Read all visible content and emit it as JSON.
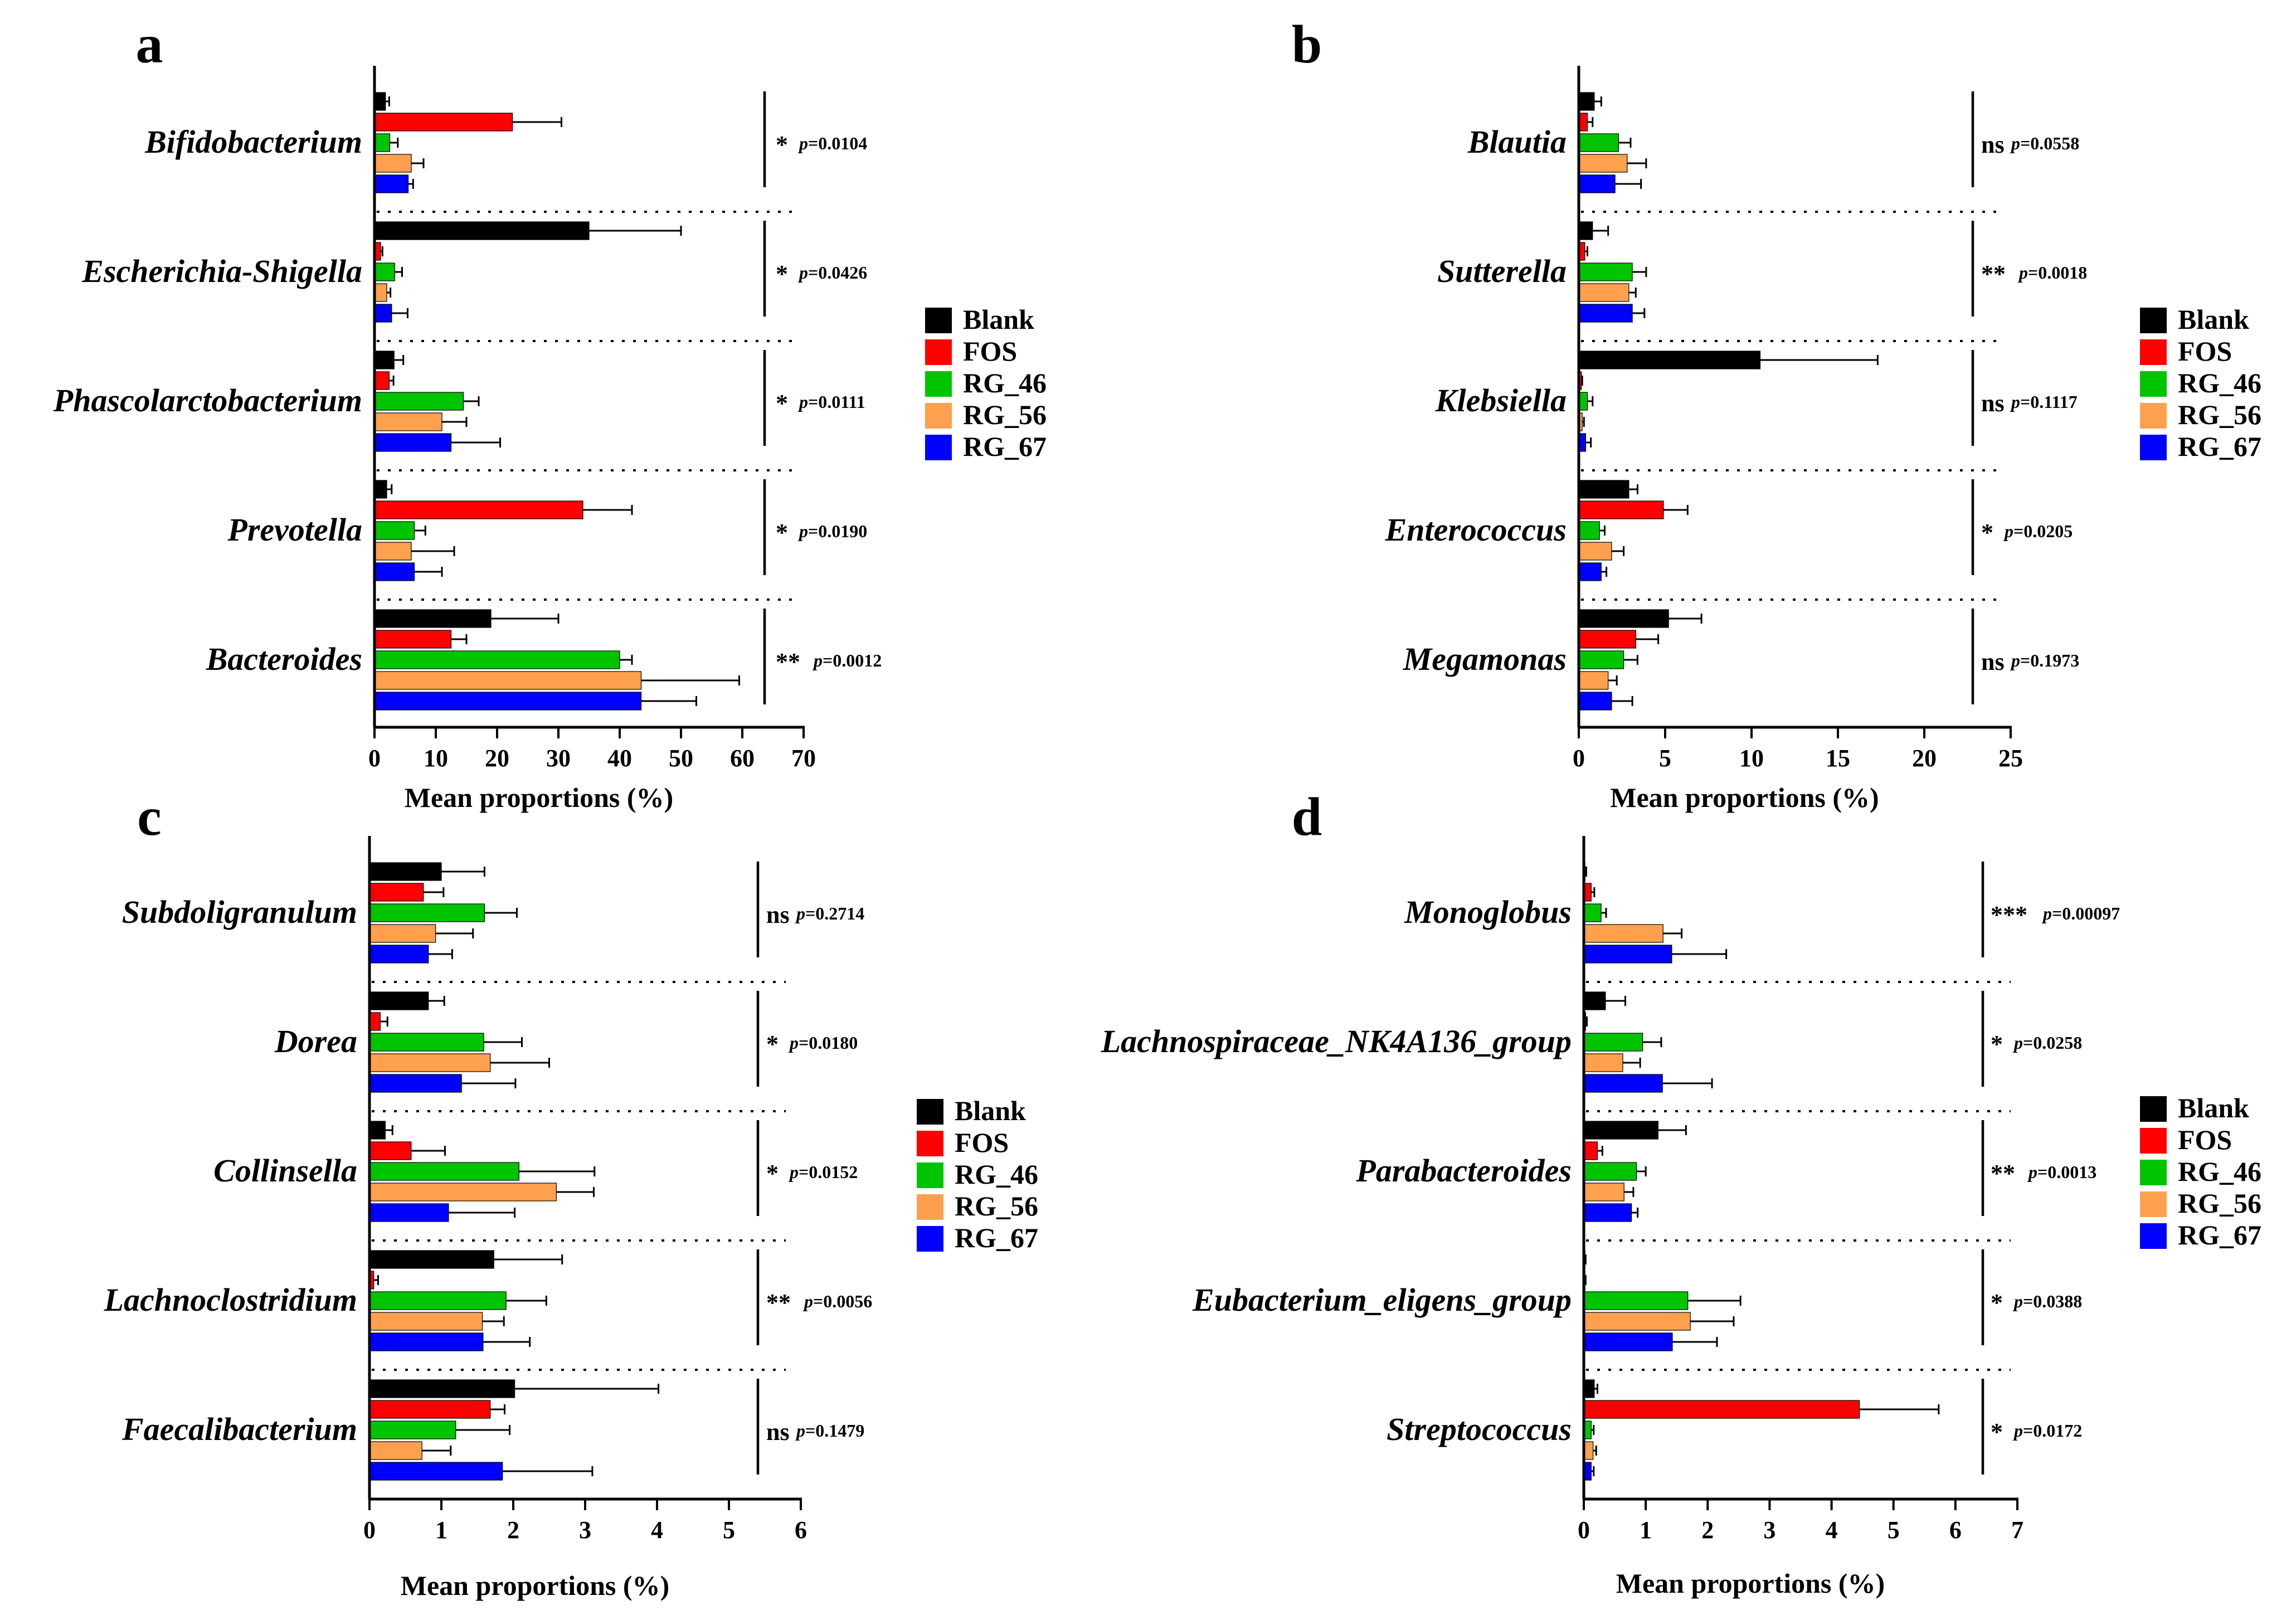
{
  "chart_data": [
    {
      "type": "bar",
      "orientation": "horizontal",
      "panel": "a",
      "xlabel": "Mean proportions (%)",
      "xlim": [
        0,
        70
      ],
      "xticks": [
        0,
        10,
        20,
        30,
        40,
        50,
        60,
        70
      ],
      "categories": [
        "Bifidobacterium",
        "Escherichia-Shigella",
        "Phascolarctobacterium",
        "Prevotella",
        "Bacteroides"
      ],
      "series": [
        {
          "name": "Blank",
          "values": [
            1.8,
            35,
            3.2,
            2,
            19
          ],
          "errors": [
            0.6,
            15,
            1.5,
            0.8,
            11
          ]
        },
        {
          "name": "FOS",
          "values": [
            22.5,
            1,
            2.4,
            34,
            12.5
          ],
          "errors": [
            8,
            0.3,
            0.7,
            8,
            2.5
          ]
        },
        {
          "name": "RG_46",
          "values": [
            2.5,
            3.3,
            14.5,
            6.5,
            40
          ],
          "errors": [
            1.3,
            1.2,
            2.5,
            1.8,
            2
          ]
        },
        {
          "name": "RG_56",
          "values": [
            6,
            2,
            11,
            6,
            43.5
          ],
          "errors": [
            2,
            0.6,
            4,
            7,
            16
          ]
        },
        {
          "name": "RG_67",
          "values": [
            5.5,
            2.8,
            12.5,
            6.5,
            43.5
          ],
          "errors": [
            0.8,
            2.6,
            8,
            4.5,
            9
          ]
        }
      ],
      "significance": [
        {
          "mark": "*",
          "p": "0.0104"
        },
        {
          "mark": "*",
          "p": "0.0426"
        },
        {
          "mark": "*",
          "p": "0.0111"
        },
        {
          "mark": "*",
          "p": "0.0190"
        },
        {
          "mark": "**",
          "p": "0.0012"
        }
      ]
    },
    {
      "type": "bar",
      "orientation": "horizontal",
      "panel": "b",
      "xlabel": "Mean proportions (%)",
      "xlim": [
        0,
        25
      ],
      "xticks": [
        0,
        5,
        10,
        15,
        20,
        25
      ],
      "categories": [
        "Blautia",
        "Sutterella",
        "Klebsiella",
        "Enterococcus",
        "Megamonas"
      ],
      "series": [
        {
          "name": "Blank",
          "values": [
            0.9,
            0.8,
            10.5,
            2.9,
            5.2
          ],
          "errors": [
            0.4,
            0.9,
            6.8,
            0.5,
            1.9
          ]
        },
        {
          "name": "FOS",
          "values": [
            0.5,
            0.35,
            0.15,
            4.9,
            3.3
          ],
          "errors": [
            0.3,
            0.15,
            0.05,
            1.4,
            1.3
          ]
        },
        {
          "name": "RG_46",
          "values": [
            2.3,
            3.1,
            0.5,
            1.2,
            2.6
          ],
          "errors": [
            0.7,
            0.8,
            0.3,
            0.3,
            0.8
          ]
        },
        {
          "name": "RG_56",
          "values": [
            2.8,
            2.9,
            0.2,
            1.9,
            1.7
          ],
          "errors": [
            1.1,
            0.4,
            0.1,
            0.7,
            0.5
          ]
        },
        {
          "name": "RG_67",
          "values": [
            2.1,
            3.1,
            0.4,
            1.3,
            1.9
          ],
          "errors": [
            1.5,
            0.7,
            0.3,
            0.3,
            1.2
          ]
        }
      ],
      "significance": [
        {
          "mark": "ns",
          "p": "0.0558"
        },
        {
          "mark": "**",
          "p": "0.0018"
        },
        {
          "mark": "ns",
          "p": "0.1117"
        },
        {
          "mark": "*",
          "p": "0.0205"
        },
        {
          "mark": "ns",
          "p": "0.1973"
        }
      ]
    },
    {
      "type": "bar",
      "orientation": "horizontal",
      "panel": "c",
      "xlabel": "Mean proportions (%)",
      "xlim": [
        0,
        6
      ],
      "xticks": [
        0,
        1,
        2,
        3,
        4,
        5,
        6
      ],
      "categories": [
        "Subdoligranulum",
        "Dorea",
        "Collinsella",
        "Lachnoclostridium",
        "Faecalibacterium"
      ],
      "series": [
        {
          "name": "Blank",
          "values": [
            1,
            0.82,
            0.22,
            1.73,
            2.02
          ],
          "errors": [
            0.6,
            0.22,
            0.1,
            0.95,
            2
          ]
        },
        {
          "name": "FOS",
          "values": [
            0.75,
            0.15,
            0.58,
            0.06,
            1.68
          ],
          "errors": [
            0.28,
            0.1,
            0.47,
            0.06,
            0.2
          ]
        },
        {
          "name": "RG_46",
          "values": [
            1.6,
            1.59,
            2.08,
            1.9,
            1.2
          ],
          "errors": [
            0.45,
            0.53,
            1.05,
            0.56,
            0.75
          ]
        },
        {
          "name": "RG_56",
          "values": [
            0.92,
            1.68,
            2.6,
            1.57,
            0.73
          ],
          "errors": [
            0.52,
            0.82,
            0.52,
            0.3,
            0.4
          ]
        },
        {
          "name": "RG_67",
          "values": [
            0.82,
            1.28,
            1.1,
            1.58,
            1.85
          ],
          "errors": [
            0.33,
            0.75,
            0.92,
            0.65,
            1.25
          ]
        }
      ],
      "significance": [
        {
          "mark": "ns",
          "p": "0.2714"
        },
        {
          "mark": "*",
          "p": "0.0180"
        },
        {
          "mark": "*",
          "p": "0.0152"
        },
        {
          "mark": "**",
          "p": "0.0056"
        },
        {
          "mark": "ns",
          "p": "0.1479"
        }
      ]
    },
    {
      "type": "bar",
      "orientation": "horizontal",
      "panel": "d",
      "xlabel": "Mean proportions (%)",
      "xlim": [
        0,
        7
      ],
      "xticks": [
        0,
        1,
        2,
        3,
        4,
        5,
        6,
        7
      ],
      "categories": [
        "Monoglobus",
        "Lachnospiraceae_NK4A136_group",
        "Parabacteroides",
        "Eubacterium_eligens_group",
        "Streptococcus"
      ],
      "series": [
        {
          "name": "Blank",
          "values": [
            0.02,
            0.35,
            1.2,
            0.02,
            0.17
          ],
          "errors": [
            0.02,
            0.32,
            0.45,
            0.01,
            0.05
          ]
        },
        {
          "name": "FOS",
          "values": [
            0.12,
            0.03,
            0.22,
            0.02,
            4.45
          ],
          "errors": [
            0.05,
            0.02,
            0.08,
            0.01,
            1.28
          ]
        },
        {
          "name": "RG_46",
          "values": [
            0.28,
            0.95,
            0.85,
            1.68,
            0.12
          ],
          "errors": [
            0.08,
            0.3,
            0.15,
            0.85,
            0.04
          ]
        },
        {
          "name": "RG_56",
          "values": [
            1.28,
            0.63,
            0.65,
            1.72,
            0.15
          ],
          "errors": [
            0.3,
            0.28,
            0.15,
            0.7,
            0.05
          ]
        },
        {
          "name": "RG_67",
          "values": [
            1.42,
            1.27,
            0.77,
            1.43,
            0.12
          ],
          "errors": [
            0.88,
            0.8,
            0.1,
            0.72,
            0.04
          ]
        }
      ],
      "significance": [
        {
          "mark": "***",
          "p": "0.00097"
        },
        {
          "mark": "*",
          "p": "0.0258"
        },
        {
          "mark": "**",
          "p": "0.0013"
        },
        {
          "mark": "*",
          "p": "0.0388"
        },
        {
          "mark": "*",
          "p": "0.0172"
        }
      ]
    }
  ],
  "legend": {
    "labels": [
      "Blank",
      "FOS",
      "RG_46",
      "RG_56",
      "RG_67"
    ],
    "colors": [
      "#000000",
      "#ff0000",
      "#00c400",
      "#ffa04e",
      "#0000ff"
    ]
  },
  "p_prefix": "p"
}
